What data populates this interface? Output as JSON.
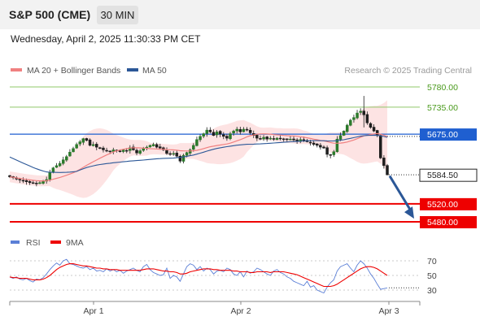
{
  "header": {
    "title": "S&P 500 (CME)",
    "timeframe": "30 MIN"
  },
  "datetime": "Wednesday, April 2, 2025 11:30:33 PM CET",
  "colors": {
    "candle_up": "#2b7a2b",
    "candle_down": "#1e1e1e",
    "ma20": "#f08080",
    "bollinger_fill": "#fde0e0",
    "ma50": "#2b5797",
    "resistance": "#8fc86a",
    "support": "#ee0000",
    "pivot": "#1f5fd0",
    "rsi": "#5b7fd6",
    "rsi_ma": "#ee0000",
    "forecast_arrow": "#2b5797"
  },
  "chart_data": [
    {
      "type": "candlestick",
      "legend": [
        {
          "name": "MA 20 + Bollinger Bands",
          "color": "#f08080"
        },
        {
          "name": "MA 50",
          "color": "#2b5797"
        }
      ],
      "credit": "Research © 2025 Trading Central",
      "x_ticks": [
        "Apr 1",
        "Apr 2",
        "Apr 3"
      ],
      "ylim": [
        5458,
        5796
      ],
      "levels": [
        {
          "value": 5780.0,
          "label": "5780.00",
          "kind": "resistance"
        },
        {
          "value": 5735.0,
          "label": "5735.00",
          "kind": "resistance"
        },
        {
          "value": 5675.0,
          "label": "5675.00",
          "kind": "pivot"
        },
        {
          "value": 5584.5,
          "label": "5584.50",
          "kind": "last"
        },
        {
          "value": 5520.0,
          "label": "5520.00",
          "kind": "support"
        },
        {
          "value": 5480.0,
          "label": "5480.00",
          "kind": "support"
        }
      ],
      "forecast_target": 5480.0,
      "close_series": [
        5580,
        5578,
        5575,
        5573,
        5571,
        5569,
        5567,
        5566,
        5565,
        5567,
        5570,
        5574,
        5590,
        5600,
        5605,
        5610,
        5618,
        5625,
        5635,
        5643,
        5652,
        5658,
        5665,
        5661,
        5650,
        5652,
        5646,
        5643,
        5640,
        5638,
        5636,
        5640,
        5638,
        5636,
        5640,
        5638,
        5645,
        5640,
        5633,
        5638,
        5643,
        5646,
        5650,
        5652,
        5646,
        5644,
        5640,
        5632,
        5630,
        5632,
        5626,
        5615,
        5628,
        5634,
        5640,
        5650,
        5663,
        5670,
        5676,
        5684,
        5680,
        5672,
        5680,
        5675,
        5670,
        5666,
        5676,
        5682,
        5686,
        5680,
        5686,
        5684,
        5678,
        5672,
        5666,
        5665,
        5668,
        5664,
        5666,
        5664,
        5666,
        5665,
        5664,
        5663,
        5664,
        5662,
        5660,
        5663,
        5661,
        5658,
        5656,
        5652,
        5650,
        5646,
        5644,
        5630,
        5628,
        5636,
        5664,
        5672,
        5682,
        5695,
        5706,
        5712,
        5722,
        5726,
        5718,
        5700,
        5690,
        5682,
        5672,
        5622,
        5605,
        5584.5
      ]
    },
    {
      "type": "line",
      "legend": [
        {
          "name": "RSI",
          "color": "#5b7fd6"
        },
        {
          "name": "9MA",
          "color": "#ee0000"
        }
      ],
      "y_ticks": [
        70,
        50,
        30
      ],
      "ylim": [
        15,
        85
      ],
      "rsi": [
        48,
        46,
        48,
        45,
        44,
        46,
        43,
        41,
        45,
        44,
        47,
        52,
        58,
        63,
        67,
        64,
        70,
        72,
        66,
        65,
        63,
        61,
        60,
        62,
        58,
        60,
        56,
        57,
        55,
        59,
        56,
        58,
        55,
        57,
        53,
        56,
        58,
        60,
        57,
        55,
        62,
        65,
        58,
        54,
        52,
        50,
        51,
        60,
        46,
        50,
        48,
        42,
        52,
        62,
        66,
        64,
        58,
        62,
        56,
        60,
        58,
        52,
        56,
        57,
        55,
        60,
        58,
        52,
        50,
        55,
        48,
        56,
        53,
        55,
        60,
        58,
        55,
        52,
        50,
        56,
        58,
        54,
        52,
        48,
        46,
        42,
        40,
        38,
        36,
        42,
        34,
        36,
        30,
        28,
        26,
        34,
        40,
        44,
        56,
        62,
        64,
        66,
        60,
        55,
        64,
        70,
        66,
        60,
        52,
        46,
        38,
        31,
        32,
        33
      ],
      "rsi_ma": [
        48,
        47,
        47,
        46,
        46,
        46,
        45,
        44,
        44,
        44,
        45,
        47,
        50,
        54,
        58,
        61,
        63,
        65,
        66,
        66,
        65,
        64,
        63,
        63,
        62,
        61,
        60,
        60,
        59,
        59,
        58,
        58,
        58,
        57,
        57,
        57,
        57,
        57,
        57,
        57,
        58,
        59,
        59,
        59,
        58,
        57,
        56,
        56,
        55,
        55,
        54,
        52,
        52,
        53,
        55,
        56,
        57,
        58,
        59,
        59,
        59,
        58,
        58,
        57,
        57,
        57,
        57,
        56,
        56,
        55,
        55,
        55,
        54,
        54,
        55,
        55,
        55,
        55,
        54,
        55,
        55,
        55,
        55,
        54,
        53,
        52,
        51,
        49,
        47,
        45,
        43,
        41,
        39,
        37,
        35,
        35,
        35,
        36,
        38,
        41,
        44,
        47,
        50,
        53,
        56,
        59,
        61,
        62,
        62,
        61,
        59,
        56,
        53,
        50
      ]
    }
  ]
}
